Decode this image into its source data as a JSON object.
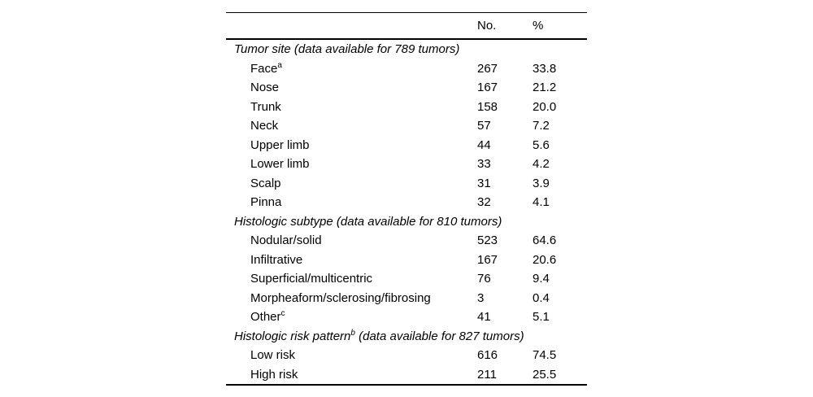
{
  "table": {
    "columns": {
      "no": "No.",
      "pct": "%"
    },
    "sections": [
      {
        "header_pre": "Tumor site",
        "header_sup": "",
        "header_post": " (data available for 789 tumors)",
        "rows": [
          {
            "label": "Face",
            "sup": "a",
            "no": "267",
            "pct": "33.8"
          },
          {
            "label": "Nose",
            "sup": "",
            "no": "167",
            "pct": "21.2"
          },
          {
            "label": "Trunk",
            "sup": "",
            "no": "158",
            "pct": "20.0"
          },
          {
            "label": "Neck",
            "sup": "",
            "no": "57",
            "pct": "7.2"
          },
          {
            "label": "Upper limb",
            "sup": "",
            "no": "44",
            "pct": "5.6"
          },
          {
            "label": "Lower limb",
            "sup": "",
            "no": "33",
            "pct": "4.2"
          },
          {
            "label": "Scalp",
            "sup": "",
            "no": "31",
            "pct": "3.9"
          },
          {
            "label": "Pinna",
            "sup": "",
            "no": "32",
            "pct": "4.1"
          }
        ]
      },
      {
        "header_pre": "Histologic subtype",
        "header_sup": "",
        "header_post": " (data available for 810 tumors)",
        "rows": [
          {
            "label": "Nodular/solid",
            "sup": "",
            "no": "523",
            "pct": "64.6"
          },
          {
            "label": "Infiltrative",
            "sup": "",
            "no": "167",
            "pct": "20.6"
          },
          {
            "label": "Superficial/multicentric",
            "sup": "",
            "no": "76",
            "pct": "9.4"
          },
          {
            "label": "Morpheaform/sclerosing/fibrosing",
            "sup": "",
            "no": "3",
            "pct": "0.4"
          },
          {
            "label": "Other",
            "sup": "c",
            "no": "41",
            "pct": "5.1"
          }
        ]
      },
      {
        "header_pre": "Histologic risk pattern",
        "header_sup": "b",
        "header_post": " (data available for 827 tumors)",
        "rows": [
          {
            "label": "Low risk",
            "sup": "",
            "no": "616",
            "pct": "74.5"
          },
          {
            "label": "High risk",
            "sup": "",
            "no": "211",
            "pct": "25.5"
          }
        ]
      }
    ]
  }
}
